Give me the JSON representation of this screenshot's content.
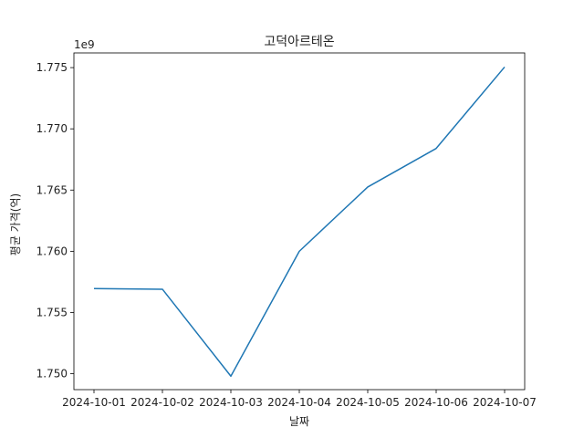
{
  "chart_data": {
    "type": "line",
    "title": "고덕아르테온",
    "xlabel": "날짜",
    "ylabel": "평균 가격(억)",
    "y_offset_label": "1e9",
    "x": [
      "2024-10-01",
      "2024-10-02",
      "2024-10-03",
      "2024-10-04",
      "2024-10-05",
      "2024-10-06",
      "2024-10-07"
    ],
    "series": [
      {
        "values": [
          1756950000,
          1756900000,
          1749800000,
          1760000000,
          1765250000,
          1768400000,
          1775050000
        ]
      }
    ],
    "ylim": [
      1748700000,
      1776200000
    ],
    "yticks": [
      1750000000,
      1755000000,
      1760000000,
      1765000000,
      1770000000,
      1775000000
    ],
    "ytick_labels": [
      "1.750",
      "1.755",
      "1.760",
      "1.765",
      "1.770",
      "1.775"
    ],
    "grid": false,
    "colors": {
      "line": "#1f77b4",
      "axis": "#000000"
    }
  }
}
